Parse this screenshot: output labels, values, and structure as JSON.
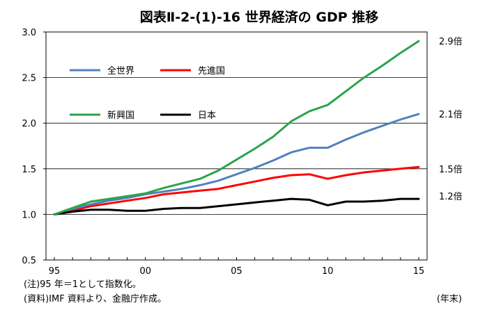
{
  "chart_data": {
    "type": "line",
    "title": "図表Ⅱ-2-(1)-16 世界経済の GDP 推移",
    "xlabel": "(年末)",
    "ylabel": "",
    "x": [
      1995,
      1996,
      1997,
      1998,
      1999,
      2000,
      2001,
      2002,
      2003,
      2004,
      2005,
      2006,
      2007,
      2008,
      2009,
      2010,
      2011,
      2012,
      2013,
      2014,
      2015
    ],
    "x_ticks": [
      1995,
      2000,
      2005,
      2010,
      2015
    ],
    "x_tick_labels": [
      "95",
      "00",
      "05",
      "10",
      "15"
    ],
    "xlim": [
      1995,
      2015
    ],
    "ylim": [
      0.5,
      3.0
    ],
    "y_ticks": [
      0.5,
      1.0,
      1.5,
      2.0,
      2.5,
      3.0
    ],
    "y_tick_labels": [
      "0.5",
      "1.0",
      "1.5",
      "2.0",
      "2.5",
      "3.0"
    ],
    "grid": "horizontal",
    "legend_position": "top-left",
    "series": [
      {
        "name": "全世界",
        "color": "#4f81bd",
        "values": [
          1.0,
          1.06,
          1.11,
          1.15,
          1.18,
          1.22,
          1.25,
          1.28,
          1.32,
          1.37,
          1.44,
          1.51,
          1.59,
          1.68,
          1.73,
          1.73,
          1.82,
          1.9,
          1.97,
          2.04,
          2.1
        ]
      },
      {
        "name": "先進国",
        "color": "#ff0000",
        "values": [
          1.0,
          1.04,
          1.09,
          1.12,
          1.15,
          1.18,
          1.22,
          1.24,
          1.26,
          1.28,
          1.32,
          1.36,
          1.4,
          1.43,
          1.44,
          1.39,
          1.43,
          1.46,
          1.48,
          1.5,
          1.52
        ]
      },
      {
        "name": "新興国",
        "color": "#2ca34a",
        "values": [
          1.0,
          1.07,
          1.14,
          1.17,
          1.2,
          1.23,
          1.29,
          1.34,
          1.39,
          1.48,
          1.6,
          1.72,
          1.85,
          2.02,
          2.13,
          2.2,
          2.35,
          2.5,
          2.63,
          2.77,
          2.9
        ]
      },
      {
        "name": "日本",
        "color": "#000000",
        "values": [
          1.0,
          1.03,
          1.05,
          1.05,
          1.04,
          1.04,
          1.06,
          1.07,
          1.07,
          1.09,
          1.11,
          1.13,
          1.15,
          1.17,
          1.16,
          1.1,
          1.14,
          1.14,
          1.15,
          1.17,
          1.17
        ]
      }
    ],
    "end_labels": [
      {
        "value": 2.9,
        "text": "2.9倍"
      },
      {
        "value": 2.1,
        "text": "2.1倍"
      },
      {
        "value": 1.5,
        "text": "1.5倍"
      },
      {
        "value": 1.2,
        "text": "1.2倍"
      }
    ]
  },
  "notes": {
    "note1": "(注)95 年＝1として指数化。",
    "note2": "(資料)IMF 資料より、金融庁作成。"
  }
}
